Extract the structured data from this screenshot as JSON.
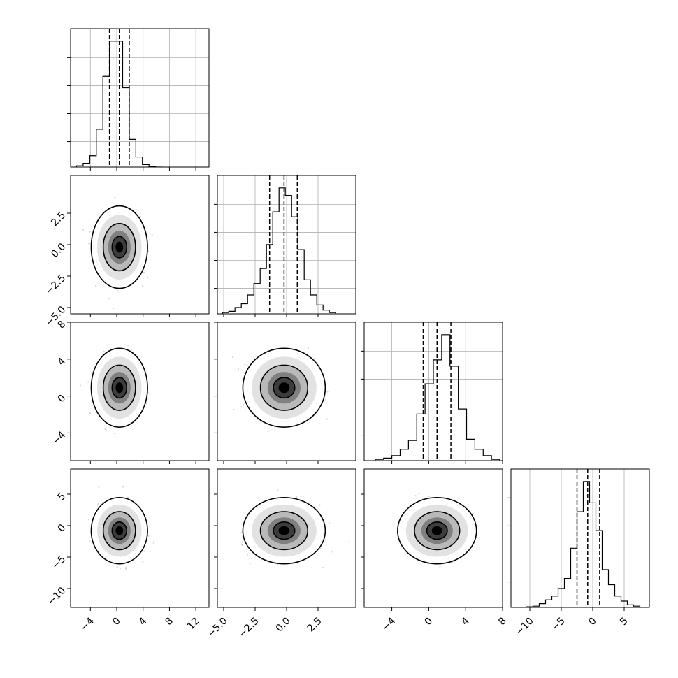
{
  "chart_data": {
    "type": "corner",
    "parameters": 4,
    "grid": true,
    "parameter_ranges": [
      [
        -7,
        14
      ],
      [
        -5.5,
        5.5
      ],
      [
        -7,
        8
      ],
      [
        -13,
        9
      ]
    ],
    "axis_ticks": [
      {
        "values": [
          -4,
          0,
          4,
          8,
          12
        ],
        "labels": [
          "−4",
          "0",
          "4",
          "8",
          "12"
        ]
      },
      {
        "values": [
          -5.0,
          -2.5,
          0.0,
          2.5
        ],
        "labels": [
          "−5.0",
          "−2.5",
          "0.0",
          "2.5"
        ]
      },
      {
        "values": [
          -4,
          0,
          4,
          8
        ],
        "labels": [
          "−4",
          "0",
          "4",
          "8"
        ]
      },
      {
        "values": [
          -10,
          -5,
          0,
          5
        ],
        "labels": [
          "−10",
          "−5",
          "0",
          "5"
        ]
      }
    ],
    "marginals": [
      {
        "parameter": 0,
        "bins_x": [
          -6.1,
          -5.1,
          -4.1,
          -3.1,
          -2.1,
          -1.1,
          -0.1,
          0.9,
          1.9,
          2.9,
          3.9,
          4.9,
          5.9,
          6.9
        ],
        "counts": [
          0.01,
          0.03,
          0.09,
          0.3,
          0.72,
          1.0,
          1.0,
          0.63,
          0.22,
          0.08,
          0.02,
          0.005,
          0
        ],
        "quantiles": [
          -1.1,
          0.4,
          1.9
        ]
      },
      {
        "parameter": 1,
        "bins_x": [
          -5.1,
          -4.6,
          -4.1,
          -3.6,
          -3.1,
          -2.6,
          -2.1,
          -1.6,
          -1.1,
          -0.6,
          -0.1,
          0.4,
          0.9,
          1.4,
          1.9,
          2.4,
          2.9,
          3.4,
          3.9
        ],
        "counts": [
          0.01,
          0.02,
          0.05,
          0.08,
          0.15,
          0.24,
          0.36,
          0.55,
          0.81,
          1.0,
          0.94,
          0.77,
          0.51,
          0.27,
          0.15,
          0.07,
          0.03,
          0.01
        ],
        "quantiles": [
          -1.35,
          -0.2,
          0.85
        ]
      },
      {
        "parameter": 2,
        "bins_x": [
          -5.8,
          -4.9,
          -4.0,
          -3.1,
          -2.2,
          -1.3,
          -0.4,
          0.5,
          1.4,
          2.3,
          3.2,
          4.1,
          5.0,
          5.9,
          6.8,
          7.7
        ],
        "counts": [
          0.01,
          0.02,
          0.04,
          0.09,
          0.16,
          0.37,
          0.61,
          0.8,
          1.0,
          0.75,
          0.41,
          0.17,
          0.09,
          0.04,
          0.01
        ],
        "quantiles": [
          -0.6,
          0.9,
          2.4
        ]
      },
      {
        "parameter": 3,
        "bins_x": [
          -10.5,
          -9.5,
          -8.5,
          -7.5,
          -6.5,
          -5.5,
          -4.5,
          -3.5,
          -2.5,
          -1.5,
          -0.5,
          0.5,
          1.5,
          2.5,
          3.5,
          4.5,
          5.5,
          6.5,
          7.5
        ],
        "counts": [
          0.005,
          0.01,
          0.03,
          0.06,
          0.09,
          0.15,
          0.23,
          0.47,
          0.76,
          1.0,
          0.83,
          0.61,
          0.3,
          0.18,
          0.09,
          0.05,
          0.02,
          0.01
        ],
        "quantiles": [
          -2.5,
          -0.8,
          1.1
        ]
      }
    ],
    "joint_2d": [
      {
        "x_param": 0,
        "y_param": 1,
        "center": [
          0.4,
          -0.2
        ],
        "sigma": [
          1.5,
          1.15
        ],
        "levels": [
          0.39,
          0.86,
          1.5
        ]
      },
      {
        "x_param": 0,
        "y_param": 2,
        "center": [
          0.4,
          0.9
        ],
        "sigma": [
          1.5,
          1.5
        ],
        "levels": [
          0.39,
          0.86,
          1.5
        ]
      },
      {
        "x_param": 1,
        "y_param": 2,
        "center": [
          -0.2,
          0.9
        ],
        "sigma": [
          1.15,
          1.5
        ],
        "levels": [
          0.39,
          0.86,
          1.5
        ]
      },
      {
        "x_param": 0,
        "y_param": 3,
        "center": [
          0.4,
          -0.8
        ],
        "sigma": [
          1.5,
          1.85
        ],
        "levels": [
          0.39,
          0.86,
          1.5
        ]
      },
      {
        "x_param": 1,
        "y_param": 3,
        "center": [
          -0.2,
          -0.8
        ],
        "sigma": [
          1.15,
          1.85
        ],
        "levels": [
          0.39,
          0.86,
          1.5
        ]
      },
      {
        "x_param": 2,
        "y_param": 3,
        "center": [
          0.9,
          -0.8
        ],
        "sigma": [
          1.5,
          1.85
        ],
        "levels": [
          0.39,
          0.86,
          1.5
        ]
      }
    ]
  }
}
